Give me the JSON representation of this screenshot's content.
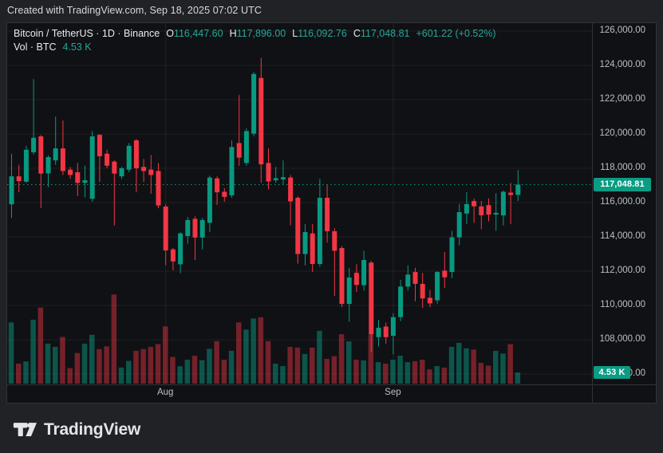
{
  "header": {
    "attribution": "Created with TradingView.com, Sep 18, 2025 07:02 UTC"
  },
  "legend": {
    "series_title": "Bitcoin / TetherUS · 1D · Binance",
    "ohlc": [
      {
        "k": "O",
        "v": "116,447.60"
      },
      {
        "k": "H",
        "v": "117,896.00"
      },
      {
        "k": "L",
        "v": "116,092.76"
      },
      {
        "k": "C",
        "v": "117,048.81"
      }
    ],
    "change": "+601.22 (+0.52%)",
    "vol_label": "Vol · BTC",
    "vol_value": "4.53 K"
  },
  "badges": {
    "last_price": "117,048.81",
    "last_volume": "4.53 K"
  },
  "axes": {
    "price_ticks": [
      {
        "value": 126000,
        "label": "126,000.00"
      },
      {
        "value": 124000,
        "label": "124,000.00"
      },
      {
        "value": 122000,
        "label": "122,000.00"
      },
      {
        "value": 120000,
        "label": "120,000.00"
      },
      {
        "value": 118000,
        "label": "118,000.00"
      },
      {
        "value": 116000,
        "label": "116,000.00"
      },
      {
        "value": 114000,
        "label": "114,000.00"
      },
      {
        "value": 112000,
        "label": "112,000.00"
      },
      {
        "value": 110000,
        "label": "110,000.00"
      },
      {
        "value": 108000,
        "label": "108,000.00"
      },
      {
        "value": 106000,
        "label": "106,000.00"
      }
    ],
    "months": [
      {
        "label": "Aug",
        "index": 21
      },
      {
        "label": "Sep",
        "index": 52
      }
    ]
  },
  "footer": {
    "logo_text": "TradingView"
  },
  "colors": {
    "up": "#089981",
    "down": "#f23645",
    "accent_text": "#26a69a",
    "volume_up": "rgba(8,153,129,0.5)",
    "volume_down": "rgba(242,54,69,0.45)",
    "badge_bg": "#0b9c83",
    "grid": "rgba(240,243,250,0.07)",
    "last_price_line": "#089981"
  },
  "chart_data": {
    "type": "candlestick+volume",
    "title": "Bitcoin / TetherUS · 1D · Binance",
    "interval": "1D",
    "exchange": "Binance",
    "legend_position": "top-left",
    "grid": true,
    "price_axis_side": "right",
    "ylim": [
      105400,
      126470
    ],
    "last_price": 117048.81,
    "last_change": "+601.22 (+0.52%)",
    "last_volume_btc_k": 4.53,
    "columns": [
      "date",
      "open",
      "high",
      "low",
      "close",
      "volume_k_btc"
    ],
    "candles": [
      [
        "Jul 11",
        115900,
        118850,
        115100,
        117530,
        24.8
      ],
      [
        "Jul 12",
        117530,
        118200,
        116600,
        117250,
        8.1
      ],
      [
        "Jul 13",
        117220,
        119300,
        117150,
        119080,
        9.0
      ],
      [
        "Jul 14",
        118930,
        123200,
        118800,
        119780,
        25.9
      ],
      [
        "Jul 15",
        119860,
        119940,
        115680,
        117690,
        30.8
      ],
      [
        "Jul 16",
        117700,
        118750,
        116900,
        118650,
        16.2
      ],
      [
        "Jul 17",
        118460,
        121020,
        118200,
        119160,
        14.9
      ],
      [
        "Jul 18",
        119160,
        120790,
        117610,
        117840,
        18.9
      ],
      [
        "Jul 19",
        117920,
        118080,
        117380,
        117610,
        6.3
      ],
      [
        "Jul 20",
        117770,
        118310,
        116370,
        117150,
        12.4
      ],
      [
        "Jul 21",
        117150,
        118150,
        116300,
        117300,
        16.2
      ],
      [
        "Jul 22",
        116220,
        120170,
        116050,
        119860,
        19.8
      ],
      [
        "Jul 23",
        119950,
        119980,
        117200,
        118700,
        14.0
      ],
      [
        "Jul 24",
        118850,
        119080,
        118000,
        118150,
        15.1
      ],
      [
        "Jul 25",
        118390,
        118460,
        114660,
        117690,
        36.1
      ],
      [
        "Jul 26",
        117530,
        118080,
        117380,
        118000,
        6.5
      ],
      [
        "Jul 27",
        117920,
        119470,
        117770,
        119310,
        9.2
      ],
      [
        "Jul 28",
        119630,
        119700,
        116600,
        118000,
        13.3
      ],
      [
        "Jul 29",
        118080,
        118540,
        117200,
        117840,
        14.0
      ],
      [
        "Jul 30",
        117920,
        118770,
        116520,
        117610,
        14.9
      ],
      [
        "Jul 31",
        117840,
        118310,
        115670,
        115830,
        16.0
      ],
      [
        "Aug 1",
        115770,
        115900,
        112340,
        113210,
        23.2
      ],
      [
        "Aug 2",
        113270,
        113350,
        112050,
        112570,
        10.8
      ],
      [
        "Aug 3",
        112400,
        114280,
        111880,
        114200,
        7.0
      ],
      [
        "Aug 4",
        114050,
        115160,
        113600,
        114980,
        9.7
      ],
      [
        "Aug 5",
        115050,
        115200,
        112650,
        113960,
        11.3
      ],
      [
        "Aug 6",
        113960,
        115100,
        113270,
        114980,
        9.5
      ],
      [
        "Aug 7",
        114820,
        117570,
        114280,
        117460,
        14.1
      ],
      [
        "Aug 8",
        117410,
        117530,
        115860,
        116600,
        17.2
      ],
      [
        "Aug 9",
        116630,
        116840,
        116050,
        116330,
        9.7
      ],
      [
        "Aug 10",
        116420,
        119630,
        116280,
        119240,
        13.3
      ],
      [
        "Aug 11",
        119470,
        122270,
        118150,
        118620,
        24.8
      ],
      [
        "Aug 12",
        118310,
        120330,
        118150,
        120170,
        21.9
      ],
      [
        "Aug 13",
        120020,
        123610,
        119860,
        123500,
        26.4
      ],
      [
        "Aug 14",
        123270,
        124430,
        117150,
        118230,
        26.9
      ],
      [
        "Aug 15",
        118310,
        119160,
        116770,
        117230,
        17.2
      ],
      [
        "Aug 16",
        117300,
        118080,
        117150,
        117420,
        8.1
      ],
      [
        "Aug 17",
        117350,
        118460,
        117070,
        117480,
        7.1
      ],
      [
        "Aug 18",
        117460,
        117610,
        114670,
        116070,
        14.9
      ],
      [
        "Aug 19",
        116280,
        116370,
        112440,
        113000,
        14.6
      ],
      [
        "Aug 20",
        113000,
        114740,
        112340,
        114280,
        12.0
      ],
      [
        "Aug 21",
        114200,
        114740,
        111950,
        112420,
        14.6
      ],
      [
        "Aug 22",
        112420,
        117380,
        112260,
        116280,
        21.4
      ],
      [
        "Aug 23",
        116280,
        117070,
        113670,
        114330,
        10.0
      ],
      [
        "Aug 24",
        114330,
        114510,
        110560,
        113190,
        11.1
      ],
      [
        "Aug 25",
        113350,
        113470,
        109900,
        110090,
        20.0
      ],
      [
        "Aug 26",
        110090,
        112190,
        109050,
        111630,
        17.1
      ],
      [
        "Aug 27",
        111900,
        112400,
        110790,
        111200,
        9.7
      ],
      [
        "Aug 28",
        111180,
        113190,
        110870,
        112650,
        9.4
      ],
      [
        "Aug 29",
        112500,
        112600,
        107300,
        108310,
        19.8
      ],
      [
        "Aug 30",
        108150,
        109160,
        107610,
        108700,
        8.7
      ],
      [
        "Aug 31",
        108770,
        109000,
        107770,
        108150,
        8.1
      ],
      [
        "Sep 1",
        108230,
        109550,
        107150,
        109320,
        9.7
      ],
      [
        "Sep 2",
        109320,
        111490,
        109080,
        111100,
        11.3
      ],
      [
        "Sep 3",
        111100,
        112340,
        110870,
        111800,
        8.7
      ],
      [
        "Sep 4",
        111950,
        112190,
        110250,
        111260,
        9.1
      ],
      [
        "Sep 5",
        111260,
        111900,
        109860,
        110410,
        9.7
      ],
      [
        "Sep 6",
        110450,
        110900,
        109900,
        110120,
        5.8
      ],
      [
        "Sep 7",
        110300,
        112000,
        110100,
        111950,
        7.1
      ],
      [
        "Sep 8",
        112030,
        113110,
        111030,
        111640,
        6.5
      ],
      [
        "Sep 9",
        111950,
        114350,
        111600,
        113970,
        14.9
      ],
      [
        "Sep 10",
        113970,
        115910,
        113500,
        115440,
        16.5
      ],
      [
        "Sep 11",
        115360,
        116600,
        114740,
        115910,
        14.3
      ],
      [
        "Sep 12",
        116090,
        116240,
        114820,
        115780,
        13.8
      ],
      [
        "Sep 13",
        115780,
        116090,
        114440,
        115260,
        8.4
      ],
      [
        "Sep 14",
        115850,
        116240,
        114900,
        115300,
        7.3
      ],
      [
        "Sep 15",
        115300,
        116550,
        114350,
        115400,
        13.3
      ],
      [
        "Sep 16",
        115250,
        116700,
        114670,
        116630,
        12.2
      ],
      [
        "Sep 17",
        116580,
        117150,
        114740,
        116440,
        16.0
      ],
      [
        "Sep 18",
        116447.6,
        117896.0,
        116092.76,
        117048.81,
        4.53
      ]
    ]
  }
}
